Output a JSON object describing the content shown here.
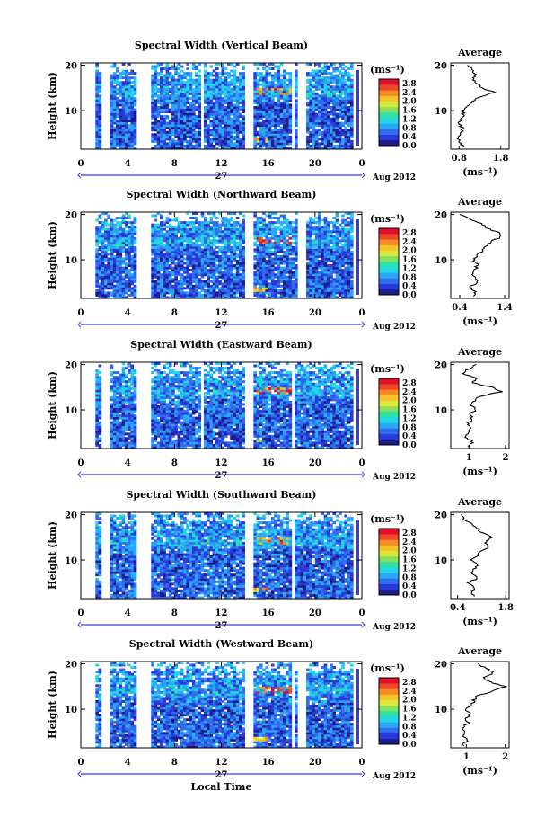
{
  "figure": {
    "xlabel": "Local Time",
    "colors": {
      "scale": [
        "#1c1c8a",
        "#2a3ad8",
        "#2f6cf0",
        "#2aa7f5",
        "#22d6e6",
        "#2de0a6",
        "#86e060",
        "#d9e83a",
        "#f6c22a",
        "#f78a22",
        "#f0462a",
        "#e0102a"
      ],
      "axis": "#000000",
      "gap_marker": "#3b3bd9"
    }
  },
  "chart_data": [
    {
      "type": "heatmap",
      "title": "Spectral Width (Vertical Beam)",
      "ylabel": "Height (km)",
      "x_ticks": [
        "0",
        "4",
        "8",
        "12",
        "16",
        "20",
        "0"
      ],
      "y_ticks": [
        "10",
        "20"
      ],
      "xlim": [
        0,
        24
      ],
      "ylim": [
        1.5,
        20.5
      ],
      "date_day": "27",
      "date_month_year": "Aug 2012",
      "colorbar": {
        "unit": "(ms⁻¹)",
        "ticks": [
          "0.0",
          "0.4",
          "0.8",
          "1.2",
          "1.6",
          "2.0",
          "2.4",
          "2.8"
        ],
        "range": [
          0,
          3.0
        ]
      },
      "data_gaps_hours": [
        [
          0,
          1.2
        ],
        [
          1.7,
          2.4
        ],
        [
          4.8,
          5.9
        ],
        [
          10.2,
          10.6
        ],
        [
          14.1,
          14.7
        ],
        [
          17.9,
          18.2
        ],
        [
          18.4,
          19.3
        ],
        [
          23.3,
          24
        ]
      ],
      "profile": {
        "title": "Average",
        "xlabel": "(ms⁻¹)",
        "x_ticks": [
          "0.8",
          "1.8"
        ],
        "y_ticks": [
          "10",
          "20"
        ],
        "xlim": [
          0.6,
          2.0
        ],
        "ylim": [
          1.5,
          20.5
        ],
        "height_km": [
          2,
          3,
          4,
          5,
          6,
          7,
          8,
          9,
          10,
          11,
          12,
          13,
          14,
          15,
          16,
          17,
          18,
          19,
          20
        ],
        "value_ms": [
          0.9,
          0.8,
          0.8,
          0.85,
          0.9,
          0.8,
          0.85,
          0.9,
          0.9,
          1.0,
          1.1,
          1.3,
          1.65,
          1.35,
          1.2,
          1.15,
          1.2,
          1.1,
          1.0
        ]
      }
    },
    {
      "type": "heatmap",
      "title": "Spectral Width (Northward Beam)",
      "ylabel": "Height (km)",
      "x_ticks": [
        "0",
        "4",
        "8",
        "12",
        "16",
        "20",
        "0"
      ],
      "y_ticks": [
        "10",
        "20"
      ],
      "xlim": [
        0,
        24
      ],
      "ylim": [
        1.5,
        20.5
      ],
      "date_day": "27",
      "date_month_year": "Aug 2012",
      "colorbar": {
        "unit": "(ms⁻¹)",
        "ticks": [
          "0.0",
          "0.4",
          "0.8",
          "1.2",
          "1.6",
          "2.0",
          "2.4",
          "2.8"
        ],
        "range": [
          0,
          3.0
        ]
      },
      "data_gaps_hours": [
        [
          0,
          1.2
        ],
        [
          4.8,
          5.9
        ],
        [
          14.1,
          14.7
        ],
        [
          18.4,
          19.3
        ],
        [
          23.3,
          24
        ]
      ],
      "profile": {
        "title": "Average",
        "xlabel": "(ms⁻¹)",
        "x_ticks": [
          "0.4",
          "1.4"
        ],
        "y_ticks": [
          "10",
          "20"
        ],
        "xlim": [
          0.2,
          1.5
        ],
        "ylim": [
          1.5,
          20.5
        ],
        "height_km": [
          2,
          3,
          4,
          5,
          6,
          7,
          8,
          9,
          10,
          11,
          12,
          13,
          14,
          15,
          16,
          17,
          18,
          19,
          20
        ],
        "value_ms": [
          0.7,
          0.75,
          0.6,
          0.8,
          0.75,
          0.7,
          0.75,
          0.8,
          0.7,
          0.8,
          0.9,
          1.0,
          1.1,
          1.3,
          1.25,
          1.0,
          0.9,
          0.6,
          0.4
        ]
      }
    },
    {
      "type": "heatmap",
      "title": "Spectral Width (Eastward Beam)",
      "ylabel": "Height (km)",
      "x_ticks": [
        "0",
        "4",
        "8",
        "12",
        "16",
        "20",
        "0"
      ],
      "y_ticks": [
        "10",
        "20"
      ],
      "xlim": [
        0,
        24
      ],
      "ylim": [
        1.5,
        20.5
      ],
      "date_day": "27",
      "date_month_year": "Aug 2012",
      "colorbar": {
        "unit": "(ms⁻¹)",
        "ticks": [
          "0.0",
          "0.4",
          "0.8",
          "1.2",
          "1.6",
          "2.0",
          "2.4",
          "2.8"
        ],
        "range": [
          0,
          3.0
        ]
      },
      "data_gaps_hours": [
        [
          0,
          1.2
        ],
        [
          1.7,
          2.4
        ],
        [
          4.8,
          5.9
        ],
        [
          10.2,
          10.6
        ],
        [
          14.1,
          14.7
        ],
        [
          17.9,
          18.2
        ],
        [
          23.3,
          24
        ]
      ],
      "profile": {
        "title": "Average",
        "xlabel": "(ms⁻¹)",
        "x_ticks": [
          "1",
          "2"
        ],
        "y_ticks": [
          "10",
          "20"
        ],
        "xlim": [
          0.5,
          2.1
        ],
        "ylim": [
          1.5,
          20.5
        ],
        "height_km": [
          2,
          3,
          4,
          5,
          6,
          7,
          8,
          9,
          10,
          11,
          12,
          13,
          14,
          15,
          16,
          17,
          18,
          19,
          20
        ],
        "value_ms": [
          1.0,
          1.1,
          0.9,
          1.0,
          1.05,
          0.95,
          1.1,
          1.0,
          1.2,
          1.05,
          1.15,
          1.3,
          1.9,
          1.6,
          1.1,
          1.2,
          0.8,
          1.0,
          1.2
        ]
      }
    },
    {
      "type": "heatmap",
      "title": "Spectral Width (Southward Beam)",
      "ylabel": "Height (km)",
      "x_ticks": [
        "0",
        "4",
        "8",
        "12",
        "16",
        "20",
        "0"
      ],
      "y_ticks": [
        "10",
        "20"
      ],
      "xlim": [
        0,
        24
      ],
      "ylim": [
        1.5,
        20.5
      ],
      "date_day": "27",
      "date_month_year": "Aug 2012",
      "colorbar": {
        "unit": "(ms⁻¹)",
        "ticks": [
          "0.0",
          "0.4",
          "0.8",
          "1.2",
          "1.6",
          "2.0",
          "2.4",
          "2.8"
        ],
        "range": [
          0,
          3.0
        ]
      },
      "data_gaps_hours": [
        [
          0,
          1.2
        ],
        [
          1.7,
          2.4
        ],
        [
          4.8,
          5.9
        ],
        [
          14.1,
          14.7
        ],
        [
          17.9,
          18.2
        ],
        [
          23.3,
          24
        ]
      ],
      "profile": {
        "title": "Average",
        "xlabel": "(ms⁻¹)",
        "x_ticks": [
          "0.4",
          "1.8"
        ],
        "y_ticks": [
          "10",
          "20"
        ],
        "xlim": [
          0.2,
          1.9
        ],
        "ylim": [
          1.5,
          20.5
        ],
        "height_km": [
          2,
          3,
          4,
          5,
          6,
          7,
          8,
          9,
          10,
          11,
          12,
          13,
          14,
          15,
          16,
          17,
          18,
          19,
          20
        ],
        "value_ms": [
          0.9,
          0.8,
          0.9,
          0.7,
          1.0,
          0.8,
          0.9,
          1.0,
          0.8,
          1.0,
          1.1,
          1.3,
          1.2,
          1.4,
          1.1,
          1.0,
          0.8,
          0.6,
          0.5
        ]
      }
    },
    {
      "type": "heatmap",
      "title": "Spectral Width (Westward Beam)",
      "ylabel": "Height (km)",
      "x_ticks": [
        "0",
        "4",
        "8",
        "12",
        "16",
        "20",
        "0"
      ],
      "y_ticks": [
        "10",
        "20"
      ],
      "xlim": [
        0,
        24
      ],
      "ylim": [
        1.5,
        20.5
      ],
      "date_day": "27",
      "date_month_year": "Aug 2012",
      "colorbar": {
        "unit": "(ms⁻¹)",
        "ticks": [
          "0.0",
          "0.4",
          "0.8",
          "1.2",
          "1.6",
          "2.0",
          "2.4",
          "2.8"
        ],
        "range": [
          0,
          3.0
        ]
      },
      "data_gaps_hours": [
        [
          0,
          1.2
        ],
        [
          1.7,
          2.4
        ],
        [
          4.8,
          5.9
        ],
        [
          14.1,
          14.7
        ],
        [
          17.9,
          18.2
        ],
        [
          18.4,
          19.3
        ],
        [
          23.3,
          24
        ]
      ],
      "profile": {
        "title": "Average",
        "xlabel": "(ms⁻¹)",
        "x_ticks": [
          "1",
          "2"
        ],
        "y_ticks": [
          "10",
          "20"
        ],
        "xlim": [
          0.6,
          2.1
        ],
        "ylim": [
          1.5,
          20.5
        ],
        "height_km": [
          2,
          3,
          4,
          5,
          6,
          7,
          8,
          9,
          10,
          11,
          12,
          13,
          14,
          15,
          16,
          17,
          18,
          19,
          20
        ],
        "value_ms": [
          0.9,
          1.0,
          0.95,
          1.0,
          0.9,
          1.05,
          1.0,
          1.1,
          1.0,
          1.15,
          1.2,
          1.3,
          1.7,
          2.0,
          1.6,
          1.4,
          1.7,
          1.5,
          1.3
        ]
      }
    }
  ]
}
